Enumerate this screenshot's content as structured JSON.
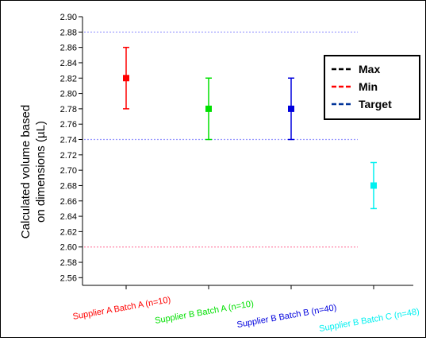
{
  "chart_data": {
    "type": "scatter",
    "title": "",
    "ylabel_line1": "Calculated volume based",
    "ylabel_line2": "on dimensions (µL)",
    "ylim": [
      2.55,
      2.9
    ],
    "yticks": [
      "2.56",
      "2.58",
      "2.60",
      "2.62",
      "2.64",
      "2.66",
      "2.68",
      "2.70",
      "2.72",
      "2.74",
      "2.76",
      "2.78",
      "2.80",
      "2.82",
      "2.84",
      "2.86",
      "2.88",
      "2.90"
    ],
    "categories": [
      "Supplier A Batch A (n=10)",
      "Supplier B Batch A (n=10)",
      "Supplier B Batch B (n=40)",
      "Supplier B Batch C (n=48)"
    ],
    "points": [
      {
        "mean": 2.82,
        "low": 2.78,
        "high": 2.86,
        "color": "#ff0000"
      },
      {
        "mean": 2.78,
        "low": 2.74,
        "high": 2.82,
        "color": "#00e000"
      },
      {
        "mean": 2.78,
        "low": 2.74,
        "high": 2.82,
        "color": "#0000dd"
      },
      {
        "mean": 2.68,
        "low": 2.65,
        "high": 2.71,
        "color": "#00f0f0"
      }
    ],
    "reference_lines": [
      {
        "value": 2.88,
        "color": "#9999ff"
      },
      {
        "value": 2.74,
        "color": "#9999ff"
      },
      {
        "value": 2.6,
        "color": "#ff88aa"
      }
    ],
    "legend": {
      "placement": "top-right",
      "entries": [
        {
          "label": "Max",
          "color": "#000000"
        },
        {
          "label": "Min",
          "color": "#ff0000"
        },
        {
          "label": "Target",
          "color": "#003399"
        }
      ]
    }
  }
}
